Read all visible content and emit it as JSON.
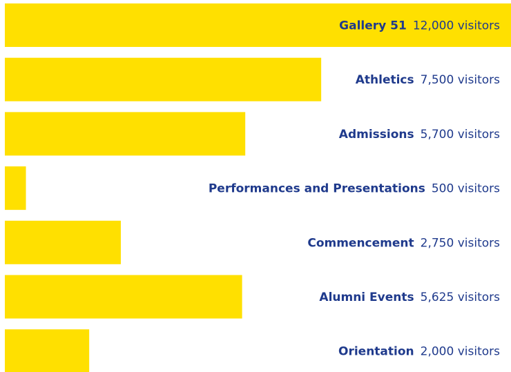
{
  "chart_data": {
    "type": "bar",
    "orientation": "horizontal",
    "categories": [
      "Gallery 51",
      "Athletics",
      "Admissions",
      "Performances and Presentations",
      "Commencement",
      "Alumni Events",
      "Orientation"
    ],
    "values": [
      12000,
      7500,
      5700,
      500,
      2750,
      5625,
      2000
    ],
    "value_labels": [
      "12,000 visitors",
      "7,500 visitors",
      "5,700 visitors",
      "500 visitors",
      "2,750 visitors",
      "5,625 visitors",
      "2,000 visitors"
    ],
    "color": "#ffe000",
    "text_color": "#1f3a8c"
  }
}
